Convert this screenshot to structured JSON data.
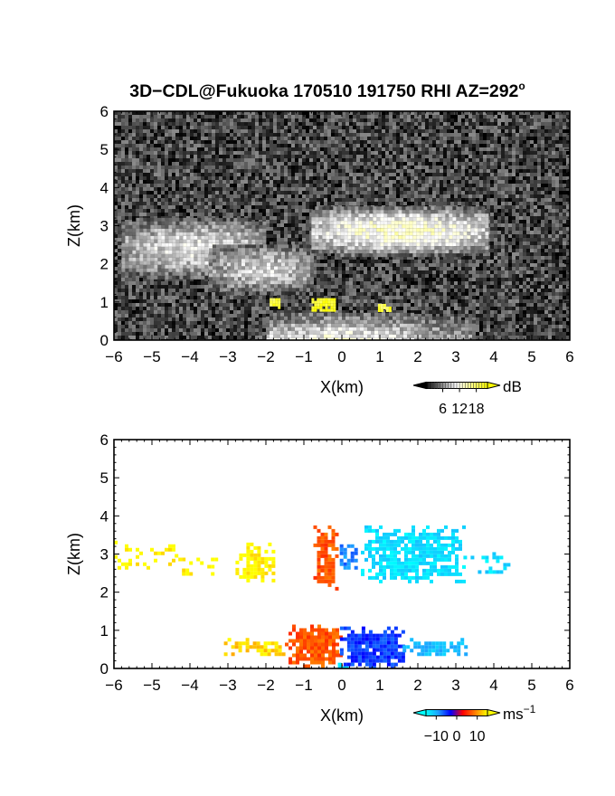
{
  "title": "3D−CDL@Fukuoka 170510 191750 RHI AZ=292",
  "title_degree": "o",
  "chart_data": [
    {
      "type": "heatmap",
      "name": "reflectivity",
      "xlabel": "X(km)",
      "ylabel": "Z(km)",
      "xlim": [
        -6,
        6
      ],
      "ylim": [
        0,
        6
      ],
      "x_ticks": [
        -6,
        -5,
        -4,
        -3,
        -2,
        -1,
        0,
        1,
        2,
        3,
        4,
        5,
        6
      ],
      "y_ticks": [
        0,
        1,
        2,
        3,
        4,
        5,
        6
      ],
      "colorbar": {
        "unit": "dB",
        "ticks": [
          6,
          12,
          18
        ],
        "range": [
          0,
          22
        ],
        "colors": [
          "#000000",
          "#ffffff",
          "#ffff00"
        ]
      },
      "background_level_db": 3,
      "features": [
        {
          "kind": "wedge",
          "x_start": -5.8,
          "x_end": -2.0,
          "z_start": 1.6,
          "z_end": 3.3,
          "level_db": 10
        },
        {
          "kind": "wedge",
          "x_start": -3.5,
          "x_end": -0.8,
          "z_start": 1.2,
          "z_end": 2.6,
          "level_db": 9
        },
        {
          "kind": "wedge",
          "x_start": -0.8,
          "x_end": 3.8,
          "z_start": 2.2,
          "z_end": 3.6,
          "level_db": 13
        },
        {
          "kind": "ground_fan",
          "x_start": -2.0,
          "x_end": 3.5,
          "z_start": 0.0,
          "z_end": 1.0,
          "level_db": 14
        },
        {
          "kind": "hotspot",
          "x_start": -0.8,
          "x_end": -0.2,
          "z_start": 0.75,
          "z_end": 1.1,
          "level_db": 20
        },
        {
          "kind": "hotspot",
          "x_start": -1.9,
          "x_end": -1.65,
          "z_start": 0.85,
          "z_end": 1.1,
          "level_db": 19
        },
        {
          "kind": "hotspot",
          "x_start": 0.95,
          "x_end": 1.25,
          "z_start": 0.8,
          "z_end": 0.95,
          "level_db": 19
        }
      ]
    },
    {
      "type": "heatmap",
      "name": "doppler velocity",
      "xlabel": "X(km)",
      "ylabel": "Z(km)",
      "xlim": [
        -6,
        6
      ],
      "ylim": [
        0,
        6
      ],
      "x_ticks": [
        -6,
        -5,
        -4,
        -3,
        -2,
        -1,
        0,
        1,
        2,
        3,
        4,
        5,
        6
      ],
      "y_ticks": [
        0,
        1,
        2,
        3,
        4,
        5,
        6
      ],
      "colorbar": {
        "unit": "ms",
        "unit_exponent": "−1",
        "ticks": [
          -10,
          0,
          10
        ],
        "tick_labels": [
          "−10",
          "0",
          "10"
        ],
        "range": [
          -15,
          15
        ],
        "colors": [
          "#00ffff",
          "#1fa0ff",
          "#0000ff",
          "#ff0000",
          "#ff7f00",
          "#ffff00"
        ]
      },
      "regions": [
        {
          "x_start": -6.0,
          "x_end": -4.4,
          "z_start": 2.65,
          "z_end": 3.35,
          "velocity": 15,
          "density": 0.35
        },
        {
          "x_start": -4.4,
          "x_end": -3.2,
          "z_start": 2.45,
          "z_end": 3.0,
          "velocity": 15,
          "density": 0.35
        },
        {
          "x_start": -2.8,
          "x_end": -1.8,
          "z_start": 2.3,
          "z_end": 3.3,
          "velocity": 15,
          "density": 0.7
        },
        {
          "x_start": -0.75,
          "x_end": -0.15,
          "z_start": 2.1,
          "z_end": 3.75,
          "velocity": 7,
          "density": 0.85
        },
        {
          "x_start": -0.15,
          "x_end": 0.5,
          "z_start": 2.6,
          "z_end": 3.35,
          "velocity": -8,
          "density": 0.6
        },
        {
          "x_start": 0.5,
          "x_end": 3.2,
          "z_start": 2.3,
          "z_end": 3.75,
          "velocity": -13,
          "density": 0.8
        },
        {
          "x_start": 3.2,
          "x_end": 4.4,
          "z_start": 2.5,
          "z_end": 3.05,
          "velocity": -13,
          "density": 0.35
        },
        {
          "x_start": -3.2,
          "x_end": -1.5,
          "z_start": 0.35,
          "z_end": 0.8,
          "velocity": 13,
          "density": 0.7
        },
        {
          "x_start": -1.5,
          "x_end": -0.05,
          "z_start": 0.05,
          "z_end": 1.15,
          "velocity": 7,
          "density": 0.95
        },
        {
          "x_start": -0.05,
          "x_end": 1.6,
          "z_start": 0.05,
          "z_end": 1.1,
          "velocity": -5,
          "density": 0.95
        },
        {
          "x_start": 1.6,
          "x_end": 3.4,
          "z_start": 0.35,
          "z_end": 0.8,
          "velocity": -11,
          "density": 0.75
        },
        {
          "x_start": -0.2,
          "x_end": 0.15,
          "z_start": 0.0,
          "z_end": 0.15,
          "velocity": -14,
          "density": 1.0
        }
      ]
    }
  ]
}
